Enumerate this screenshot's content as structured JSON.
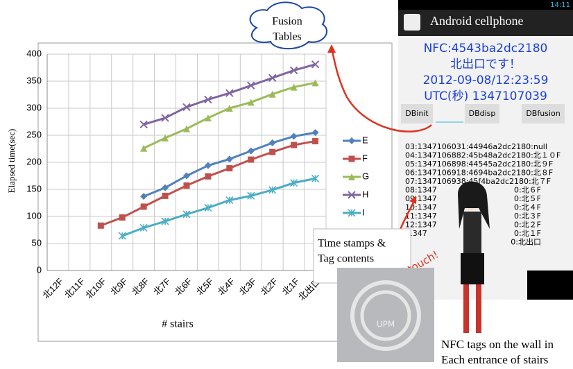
{
  "chart_data": {
    "type": "line",
    "y_label": "Elapsed time(sec)",
    "x_label": "# stairs",
    "categories": [
      "北12F",
      "北11F",
      "北10F",
      "北9F",
      "北8F",
      "北7F",
      "北6F",
      "北5F",
      "北4F",
      "北3F",
      "北2F",
      "北1F",
      "北出口"
    ],
    "series": [
      {
        "name": "E",
        "color": "#4f81bd",
        "marker": "diamond",
        "values": [
          null,
          null,
          null,
          null,
          137,
          153,
          175,
          194,
          206,
          221,
          236,
          248,
          255
        ]
      },
      {
        "name": "F",
        "color": "#c0504d",
        "marker": "square",
        "values": [
          null,
          null,
          83,
          98,
          118,
          138,
          157,
          174,
          189,
          205,
          219,
          232,
          239
        ]
      },
      {
        "name": "G",
        "color": "#9bbb59",
        "marker": "triangle",
        "values": [
          null,
          null,
          null,
          null,
          226,
          245,
          262,
          282,
          300,
          311,
          326,
          339,
          347
        ]
      },
      {
        "name": "H",
        "color": "#8064a2",
        "marker": "x",
        "values": [
          null,
          null,
          null,
          null,
          270,
          282,
          302,
          316,
          328,
          342,
          356,
          370,
          381
        ]
      },
      {
        "name": "I",
        "color": "#4bacc6",
        "marker": "star",
        "values": [
          null,
          null,
          null,
          64,
          79,
          91,
          104,
          116,
          130,
          138,
          149,
          162,
          170
        ]
      }
    ],
    "ylim": [
      0,
      400
    ],
    "yticks": [
      0,
      50,
      100,
      150,
      200,
      250,
      300,
      350,
      400
    ],
    "grid": true,
    "legend": "right"
  },
  "cloud": [
    "Fusion",
    "Tables"
  ],
  "phone": {
    "time": "14:11",
    "app_title": "Android cellphone",
    "nfc": [
      "NFC:4543ba2dc2180",
      "北出口です！",
      "2012-09-08/12:23:59",
      "UTC(秒) 1347107039"
    ],
    "buttons": [
      "DBinit",
      "DBdisp",
      "DBfusion"
    ],
    "log": [
      "03:1347106031:44946a2dc2180:null",
      "04:1347106882:45b48a2dc2180:北１０F",
      "05:1347106898:44545a2dc2180:北９F",
      "06:1347106918:4694ba2dc2180:北８F",
      "07:1347106938:45f4ba2dc2180:北７F"
    ],
    "log_left": [
      "08:1347",
      "09:1347",
      "10:1347",
      "11:1347",
      "12:1347",
      ":1347"
    ],
    "log_right": [
      "0:北６F",
      "0:北５F",
      "0:北４F",
      "0:北３F",
      "0:北２F",
      "0:北１F",
      "0:北出口"
    ]
  },
  "callout": [
    "Time stamps &",
    "Tag contents"
  ],
  "touch": "touch!",
  "tag_label": "UPM",
  "caption": [
    "NFC tags on the wall in",
    "Each entrance of stairs"
  ]
}
